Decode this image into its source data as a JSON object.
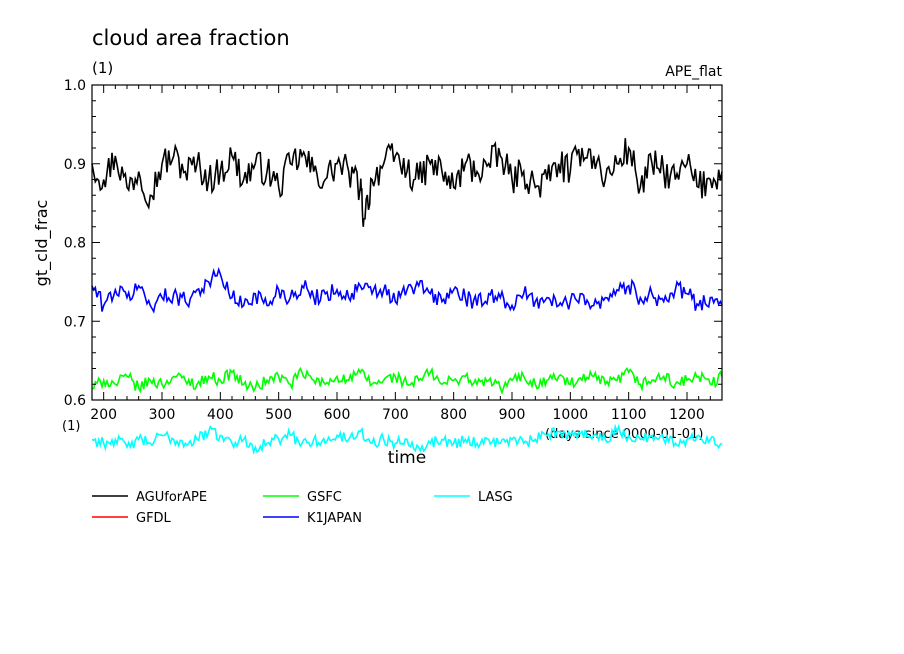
{
  "header": {
    "title": "cloud area fraction",
    "subtitle": "(1)",
    "experiment": "APE_flat",
    "lower_unit": "(1)",
    "x_unit_note": "(days since 0000-01-01)"
  },
  "chart_data": {
    "type": "line",
    "title": "cloud area fraction",
    "xlabel": "time",
    "ylabel": "gt_cld_frac",
    "xlim": [
      180,
      1260
    ],
    "ylim": [
      0.6,
      1.0
    ],
    "x_ticks": [
      200,
      300,
      400,
      500,
      600,
      700,
      800,
      900,
      1000,
      1100,
      1200
    ],
    "y_ticks": [
      0.6,
      0.7,
      0.8,
      0.9,
      1.0
    ],
    "y_tick_labels": [
      "0.6",
      "0.7",
      "0.8",
      "0.9",
      "1.0"
    ],
    "grid": false,
    "legend_position": "bottom-left",
    "series": [
      {
        "name": "AGUforAPE",
        "color": "#000000",
        "x": [
          180,
          200,
          220,
          240,
          260,
          280,
          300,
          320,
          340,
          360,
          380,
          400,
          420,
          440,
          460,
          480,
          500,
          520,
          540,
          560,
          580,
          600,
          620,
          640,
          646,
          660,
          680,
          700,
          720,
          740,
          760,
          780,
          800,
          820,
          840,
          860,
          880,
          900,
          920,
          940,
          960,
          980,
          1000,
          1020,
          1040,
          1060,
          1080,
          1100,
          1120,
          1140,
          1160,
          1180,
          1200,
          1220,
          1240,
          1260
        ],
        "values": [
          0.9,
          0.88,
          0.91,
          0.87,
          0.89,
          0.86,
          0.9,
          0.91,
          0.89,
          0.9,
          0.88,
          0.89,
          0.91,
          0.88,
          0.9,
          0.89,
          0.87,
          0.9,
          0.91,
          0.89,
          0.88,
          0.9,
          0.89,
          0.87,
          0.83,
          0.88,
          0.9,
          0.91,
          0.89,
          0.88,
          0.9,
          0.89,
          0.87,
          0.9,
          0.89,
          0.9,
          0.91,
          0.88,
          0.89,
          0.87,
          0.88,
          0.9,
          0.89,
          0.92,
          0.91,
          0.88,
          0.9,
          0.92,
          0.87,
          0.9,
          0.89,
          0.88,
          0.9,
          0.87,
          0.88,
          0.89
        ]
      },
      {
        "name": "GFDL",
        "color": "#ff0000",
        "x": [],
        "values": []
      },
      {
        "name": "GSFC",
        "color": "#00ff00",
        "x": [
          180,
          200,
          220,
          240,
          260,
          280,
          300,
          320,
          340,
          360,
          380,
          400,
          420,
          440,
          460,
          480,
          500,
          520,
          540,
          560,
          580,
          600,
          620,
          640,
          660,
          680,
          700,
          720,
          740,
          760,
          780,
          800,
          820,
          840,
          860,
          880,
          900,
          920,
          940,
          960,
          980,
          1000,
          1020,
          1040,
          1060,
          1080,
          1100,
          1120,
          1140,
          1160,
          1180,
          1200,
          1220,
          1240,
          1260
        ],
        "values": [
          0.615,
          0.625,
          0.62,
          0.63,
          0.615,
          0.625,
          0.62,
          0.63,
          0.625,
          0.62,
          0.63,
          0.625,
          0.635,
          0.62,
          0.615,
          0.625,
          0.63,
          0.62,
          0.635,
          0.625,
          0.62,
          0.63,
          0.625,
          0.635,
          0.62,
          0.625,
          0.63,
          0.62,
          0.625,
          0.635,
          0.62,
          0.625,
          0.63,
          0.62,
          0.625,
          0.615,
          0.625,
          0.63,
          0.62,
          0.625,
          0.63,
          0.62,
          0.625,
          0.63,
          0.62,
          0.625,
          0.635,
          0.62,
          0.625,
          0.63,
          0.62,
          0.625,
          0.63,
          0.62,
          0.63
        ]
      },
      {
        "name": "K1JAPAN",
        "color": "#0000ff",
        "x": [
          180,
          200,
          220,
          240,
          260,
          280,
          300,
          320,
          340,
          360,
          380,
          400,
          420,
          440,
          460,
          480,
          500,
          520,
          540,
          560,
          580,
          600,
          620,
          640,
          660,
          680,
          700,
          720,
          740,
          760,
          780,
          800,
          820,
          840,
          860,
          880,
          900,
          920,
          940,
          960,
          980,
          1000,
          1020,
          1040,
          1060,
          1080,
          1100,
          1120,
          1140,
          1160,
          1180,
          1200,
          1220,
          1240,
          1260
        ],
        "values": [
          0.745,
          0.72,
          0.74,
          0.73,
          0.745,
          0.72,
          0.73,
          0.735,
          0.725,
          0.74,
          0.75,
          0.76,
          0.73,
          0.72,
          0.735,
          0.72,
          0.74,
          0.73,
          0.745,
          0.73,
          0.735,
          0.74,
          0.73,
          0.745,
          0.735,
          0.74,
          0.725,
          0.74,
          0.745,
          0.735,
          0.725,
          0.74,
          0.73,
          0.72,
          0.735,
          0.73,
          0.72,
          0.735,
          0.725,
          0.73,
          0.72,
          0.725,
          0.735,
          0.72,
          0.73,
          0.74,
          0.745,
          0.73,
          0.735,
          0.725,
          0.74,
          0.735,
          0.72,
          0.73,
          0.72
        ]
      },
      {
        "name": "LASG",
        "color": "#00ffff",
        "x": [
          180,
          200,
          220,
          240,
          260,
          280,
          300,
          320,
          340,
          360,
          380,
          400,
          420,
          440,
          460,
          480,
          500,
          520,
          540,
          560,
          580,
          600,
          620,
          640,
          660,
          680,
          700,
          720,
          740,
          760,
          780,
          800,
          820,
          840,
          860,
          880,
          900,
          920,
          940,
          960,
          980,
          1000,
          1020,
          1040,
          1060,
          1080,
          1100,
          1120,
          1140,
          1160,
          1180,
          1200,
          1220,
          1240,
          1260
        ],
        "values": [
          0.55,
          0.545,
          0.55,
          0.54,
          0.55,
          0.545,
          0.555,
          0.55,
          0.545,
          0.55,
          0.56,
          0.555,
          0.545,
          0.55,
          0.54,
          0.545,
          0.55,
          0.555,
          0.545,
          0.55,
          0.545,
          0.555,
          0.55,
          0.56,
          0.545,
          0.55,
          0.545,
          0.55,
          0.54,
          0.545,
          0.55,
          0.545,
          0.55,
          0.545,
          0.55,
          0.545,
          0.55,
          0.545,
          0.55,
          0.555,
          0.56,
          0.555,
          0.56,
          0.555,
          0.55,
          0.56,
          0.555,
          0.55,
          0.555,
          0.55,
          0.545,
          0.55,
          0.555,
          0.55,
          0.545
        ]
      }
    ]
  }
}
